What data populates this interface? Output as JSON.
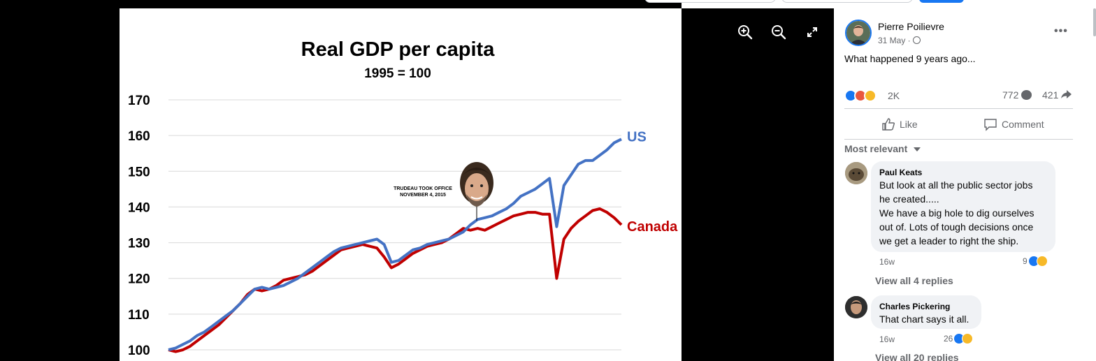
{
  "viewer": {
    "zoom_in_icon": "zoom-in-icon",
    "zoom_out_icon": "zoom-out-icon",
    "fullscreen_icon": "expand-icon"
  },
  "chart_data": {
    "type": "line",
    "title": "Real GDP per capita",
    "subtitle": "1995 = 100",
    "xlabel": "",
    "ylabel": "",
    "ylim": [
      100,
      170
    ],
    "yticks": [
      "170",
      "160",
      "150",
      "140",
      "130",
      "120",
      "110",
      "100"
    ],
    "grid": true,
    "annotation": {
      "line1": "TRUDEAU TOOK OFFICE",
      "line2": "NOVEMBER 4, 2015"
    },
    "series": [
      {
        "name": "US",
        "color": "#4472c4",
        "values": [
          100,
          100.5,
          101.5,
          102.5,
          104,
          105,
          106.5,
          108,
          109.5,
          111,
          113,
          115,
          117,
          117.5,
          117,
          117.5,
          118,
          119,
          120,
          121.5,
          123,
          124.5,
          126,
          127.5,
          128.5,
          129,
          129.5,
          130,
          130.5,
          131,
          129.5,
          124.5,
          125,
          126.5,
          128,
          128.5,
          129.5,
          130,
          130.5,
          131,
          132,
          133,
          135,
          136.5,
          137,
          137.5,
          138.5,
          139.5,
          141,
          143,
          144,
          145,
          146.5,
          148,
          134.5,
          146,
          149,
          152,
          153,
          153,
          154.5,
          156,
          158,
          159
        ]
      },
      {
        "name": "Canada",
        "color": "#c00000",
        "values": [
          100,
          99.5,
          100,
          101,
          102.5,
          104,
          105.5,
          107,
          109,
          111,
          113,
          115.5,
          117,
          116.5,
          117,
          118,
          119.5,
          120,
          120.5,
          121,
          122,
          123.5,
          125,
          126.5,
          128,
          128.5,
          129,
          129.5,
          129,
          128.5,
          126,
          123,
          124,
          125.5,
          127,
          128,
          129,
          129.5,
          130,
          131,
          132.5,
          134,
          133.5,
          134,
          133.5,
          134.5,
          135.5,
          136.5,
          137.5,
          138,
          138.5,
          138.5,
          138,
          138,
          120,
          131,
          134,
          136,
          137.5,
          139,
          139.5,
          138.5,
          137,
          135
        ]
      }
    ]
  },
  "post": {
    "author": "Pierre Poilievre",
    "date": "31 May · ",
    "privacy_icon": "globe-icon",
    "text": "What happened 9 years ago...",
    "reactions": {
      "count": "2K",
      "types": [
        "like",
        "angry",
        "sad"
      ],
      "comments": "772",
      "shares": "421"
    },
    "actions": {
      "like": "Like",
      "comment": "Comment"
    },
    "sort_label": "Most relevant"
  },
  "comments": [
    {
      "name": "Paul Keats",
      "lines": [
        "But look at all the public sector jobs",
        "he created.....",
        "We have a big hole to dig ourselves",
        "out of. Lots of tough decisions once",
        "we get a leader to right the ship."
      ],
      "time": "16w",
      "reaction_count": "9",
      "view_replies": "View all 4 replies"
    },
    {
      "name": "Charles Pickering",
      "lines": [
        "That chart says it all."
      ],
      "time": "16w",
      "reaction_count": "26",
      "view_replies": "View all 20 replies"
    }
  ],
  "colors": {
    "accent": "#1877f2",
    "us": "#4472c4",
    "canada": "#c00000",
    "muted": "#65676b"
  }
}
